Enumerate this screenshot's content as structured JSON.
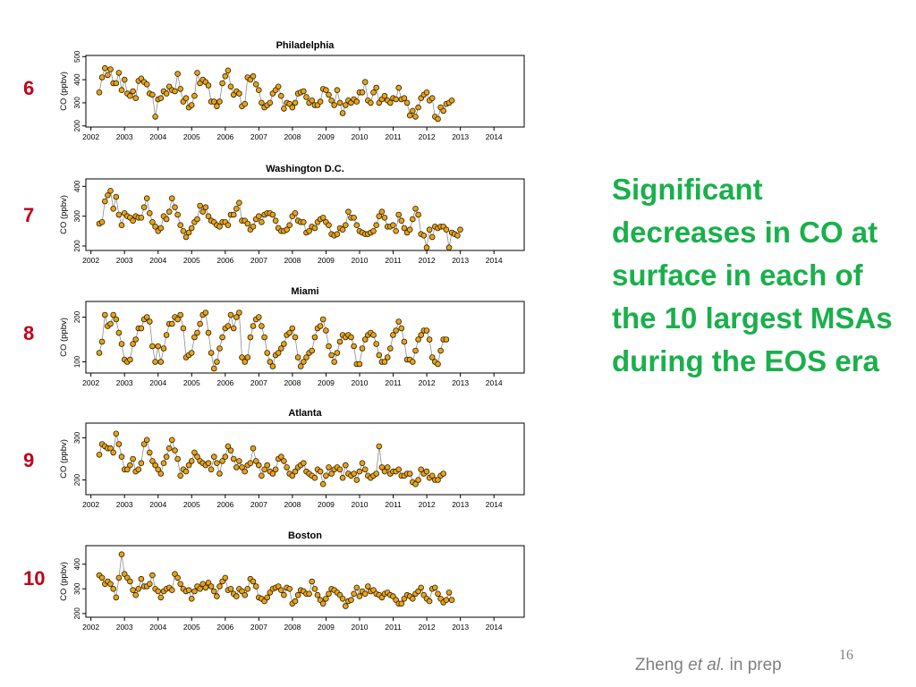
{
  "ranks": [
    "6",
    "7",
    "8",
    "9",
    "10"
  ],
  "headline": "Significant decreases in CO at surface in each of the 10 largest MSAs during the EOS era",
  "credit": {
    "author": "Zheng ",
    "etal": "et al.",
    "suffix": " in prep"
  },
  "slide_number": "16",
  "colors": {
    "marker_fill": "#e8a317",
    "marker_stroke": "#2b1d00",
    "line": "#8c8c8c",
    "rank": "#c0001a",
    "headline": "#19b04b"
  },
  "chart_data": [
    {
      "type": "line",
      "title": "Philadelphia",
      "ylabel": "CO (ppbv)",
      "xlabel": "",
      "xlim": [
        2001.85,
        2014.9
      ],
      "ylim": [
        195,
        505
      ],
      "yticks": [
        200,
        300,
        400,
        500
      ],
      "xticks": [
        2002,
        2003,
        2004,
        2005,
        2006,
        2007,
        2008,
        2009,
        2010,
        2011,
        2012,
        2013,
        2014
      ],
      "x_start": 2002.25,
      "x_step": 0.0833,
      "values": [
        345,
        410,
        450,
        420,
        445,
        385,
        385,
        430,
        355,
        400,
        340,
        330,
        350,
        320,
        395,
        405,
        390,
        380,
        340,
        335,
        240,
        315,
        320,
        350,
        340,
        370,
        355,
        350,
        425,
        360,
        305,
        320,
        280,
        290,
        330,
        430,
        385,
        400,
        390,
        375,
        305,
        305,
        285,
        305,
        385,
        415,
        440,
        370,
        335,
        350,
        340,
        285,
        295,
        410,
        400,
        415,
        380,
        355,
        300,
        280,
        290,
        300,
        340,
        355,
        370,
        330,
        275,
        300,
        295,
        280,
        300,
        340,
        345,
        350,
        325,
        300,
        310,
        290,
        290,
        305,
        360,
        355,
        335,
        310,
        290,
        355,
        300,
        255,
        290,
        310,
        300,
        315,
        305,
        345,
        345,
        390,
        310,
        300,
        345,
        365,
        300,
        315,
        330,
        310,
        300,
        320,
        315,
        365,
        315,
        320,
        300,
        245,
        265,
        240,
        280,
        320,
        335,
        345,
        310,
        320,
        240,
        230,
        280,
        265,
        295,
        300,
        310
      ]
    },
    {
      "type": "line",
      "title": "Washington D.C.",
      "ylabel": "CO (ppbv)",
      "xlabel": "",
      "xlim": [
        2001.85,
        2014.9
      ],
      "ylim": [
        185,
        425
      ],
      "yticks": [
        200,
        300,
        400
      ],
      "xticks": [
        2002,
        2003,
        2004,
        2005,
        2006,
        2007,
        2008,
        2009,
        2010,
        2011,
        2012,
        2013,
        2014
      ],
      "x_start": 2002.25,
      "x_step": 0.0833,
      "values": [
        275,
        280,
        350,
        370,
        385,
        325,
        365,
        305,
        270,
        310,
        300,
        295,
        285,
        300,
        295,
        295,
        330,
        360,
        310,
        280,
        265,
        250,
        260,
        300,
        290,
        315,
        360,
        330,
        305,
        270,
        250,
        230,
        245,
        260,
        280,
        290,
        335,
        315,
        330,
        300,
        285,
        280,
        270,
        265,
        280,
        280,
        270,
        305,
        305,
        325,
        345,
        285,
        285,
        275,
        255,
        265,
        290,
        300,
        280,
        305,
        310,
        310,
        305,
        285,
        260,
        250,
        250,
        255,
        270,
        300,
        310,
        285,
        280,
        280,
        245,
        250,
        265,
        260,
        280,
        290,
        295,
        280,
        270,
        240,
        235,
        240,
        260,
        255,
        270,
        315,
        295,
        295,
        270,
        250,
        245,
        240,
        240,
        245,
        250,
        270,
        300,
        315,
        295,
        265,
        265,
        270,
        250,
        305,
        285,
        260,
        245,
        255,
        290,
        325,
        305,
        240,
        235,
        195,
        255,
        230,
        265,
        260,
        265,
        265,
        255,
        195,
        245,
        240,
        235,
        255
      ]
    },
    {
      "type": "line",
      "title": "Miami",
      "ylabel": "CO (ppbv)",
      "xlabel": "",
      "xlim": [
        2001.85,
        2014.9
      ],
      "ylim": [
        75,
        235
      ],
      "yticks": [
        100,
        200
      ],
      "xticks": [
        2002,
        2003,
        2004,
        2005,
        2006,
        2007,
        2008,
        2009,
        2010,
        2011,
        2012,
        2013,
        2014
      ],
      "x_start": 2002.25,
      "x_step": 0.0833,
      "values": [
        120,
        145,
        205,
        180,
        185,
        205,
        195,
        165,
        140,
        105,
        100,
        105,
        140,
        150,
        175,
        175,
        195,
        200,
        190,
        135,
        100,
        135,
        100,
        130,
        160,
        185,
        185,
        200,
        195,
        205,
        175,
        110,
        115,
        120,
        155,
        165,
        185,
        205,
        210,
        165,
        120,
        85,
        100,
        130,
        155,
        175,
        180,
        205,
        175,
        200,
        210,
        110,
        100,
        110,
        155,
        180,
        195,
        200,
        180,
        155,
        120,
        100,
        90,
        115,
        120,
        130,
        140,
        160,
        165,
        175,
        155,
        110,
        90,
        100,
        110,
        120,
        125,
        155,
        175,
        180,
        195,
        170,
        135,
        115,
        100,
        120,
        145,
        160,
        155,
        160,
        155,
        135,
        95,
        95,
        130,
        150,
        160,
        165,
        160,
        140,
        115,
        100,
        100,
        110,
        130,
        160,
        170,
        190,
        175,
        145,
        105,
        105,
        100,
        125,
        150,
        160,
        170,
        170,
        150,
        110,
        100,
        95,
        125,
        150,
        150
      ]
    },
    {
      "type": "line",
      "title": "Atlanta",
      "ylabel": "CO (ppbv)",
      "xlabel": "",
      "xlim": [
        2001.85,
        2014.9
      ],
      "ylim": [
        165,
        335
      ],
      "yticks": [
        200,
        300
      ],
      "xticks": [
        2002,
        2003,
        2004,
        2005,
        2006,
        2007,
        2008,
        2009,
        2010,
        2011,
        2012,
        2013,
        2014
      ],
      "x_start": 2002.25,
      "x_step": 0.0833,
      "values": [
        260,
        285,
        280,
        275,
        275,
        265,
        310,
        285,
        255,
        225,
        225,
        235,
        250,
        220,
        225,
        240,
        285,
        295,
        265,
        245,
        235,
        225,
        215,
        240,
        255,
        275,
        295,
        270,
        250,
        210,
        225,
        220,
        235,
        245,
        265,
        255,
        245,
        240,
        235,
        240,
        225,
        255,
        240,
        215,
        245,
        255,
        280,
        270,
        250,
        230,
        245,
        230,
        220,
        235,
        240,
        275,
        245,
        235,
        210,
        225,
        235,
        220,
        215,
        225,
        250,
        255,
        245,
        230,
        215,
        210,
        220,
        230,
        235,
        240,
        220,
        215,
        210,
        205,
        225,
        220,
        190,
        210,
        230,
        215,
        225,
        230,
        225,
        205,
        235,
        215,
        210,
        215,
        200,
        220,
        240,
        225,
        210,
        205,
        210,
        215,
        280,
        230,
        220,
        230,
        215,
        220,
        220,
        225,
        210,
        210,
        215,
        215,
        195,
        190,
        200,
        225,
        215,
        220,
        205,
        210,
        200,
        200,
        210,
        215
      ]
    },
    {
      "type": "line",
      "title": "Boston",
      "ylabel": "CO (ppbv)",
      "xlabel": "",
      "xlim": [
        2001.85,
        2014.9
      ],
      "ylim": [
        185,
        475
      ],
      "yticks": [
        200,
        300,
        400
      ],
      "xticks": [
        2002,
        2003,
        2004,
        2005,
        2006,
        2007,
        2008,
        2009,
        2010,
        2011,
        2012,
        2013,
        2014
      ],
      "x_start": 2002.25,
      "x_step": 0.0833,
      "values": [
        355,
        345,
        320,
        330,
        320,
        300,
        265,
        345,
        440,
        360,
        345,
        330,
        295,
        275,
        300,
        340,
        310,
        310,
        320,
        355,
        300,
        290,
        265,
        290,
        300,
        305,
        295,
        360,
        345,
        320,
        300,
        290,
        295,
        260,
        290,
        310,
        300,
        320,
        305,
        325,
        310,
        290,
        270,
        310,
        330,
        345,
        295,
        300,
        280,
        270,
        300,
        290,
        275,
        300,
        340,
        330,
        310,
        265,
        260,
        250,
        265,
        285,
        300,
        305,
        310,
        295,
        275,
        305,
        300,
        240,
        250,
        275,
        295,
        290,
        280,
        280,
        330,
        300,
        275,
        255,
        240,
        260,
        280,
        300,
        295,
        285,
        275,
        260,
        230,
        250,
        255,
        280,
        305,
        270,
        290,
        280,
        310,
        290,
        295,
        280,
        275,
        265,
        280,
        285,
        275,
        270,
        255,
        240,
        240,
        260,
        275,
        270,
        260,
        280,
        290,
        305,
        275,
        260,
        250,
        300,
        305,
        280,
        260,
        245,
        255,
        285,
        255
      ]
    }
  ]
}
